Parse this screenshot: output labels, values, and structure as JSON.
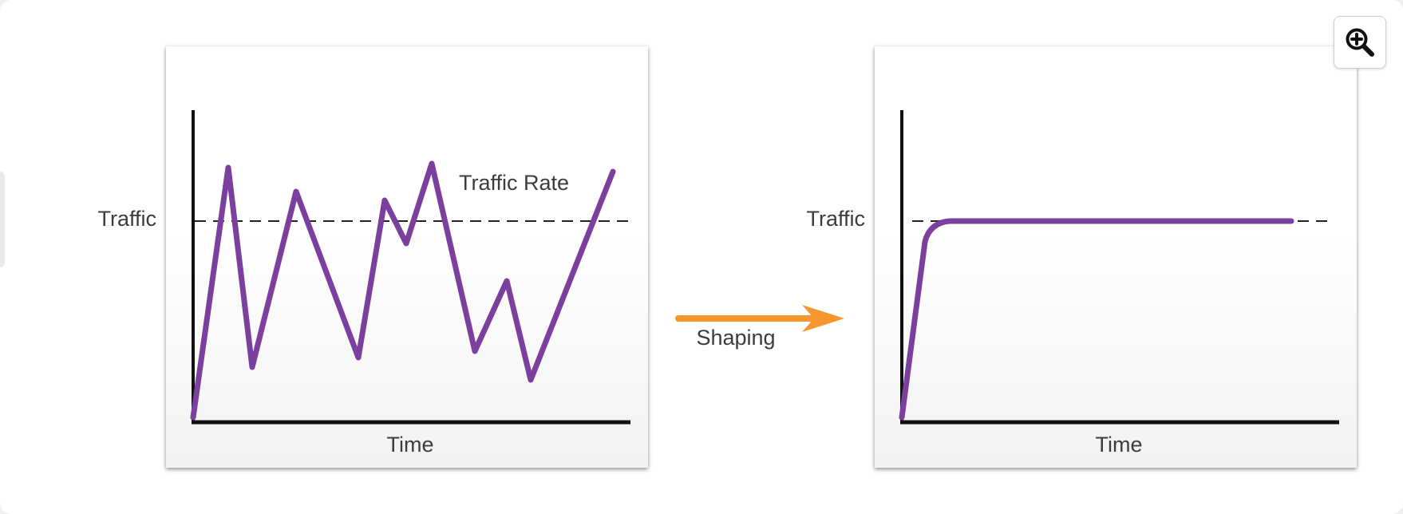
{
  "left_chart": {
    "y_label": "Traffic",
    "x_label": "Time",
    "annotation": "Traffic Rate"
  },
  "right_chart": {
    "y_label": "Traffic",
    "x_label": "Time"
  },
  "arrow": {
    "label": "Shaping"
  },
  "colors": {
    "traffic_line": "#7b3f9e",
    "arrow": "#f7962f",
    "axes": "#111111"
  },
  "icons": {
    "zoom": "zoom-in-icon"
  }
}
